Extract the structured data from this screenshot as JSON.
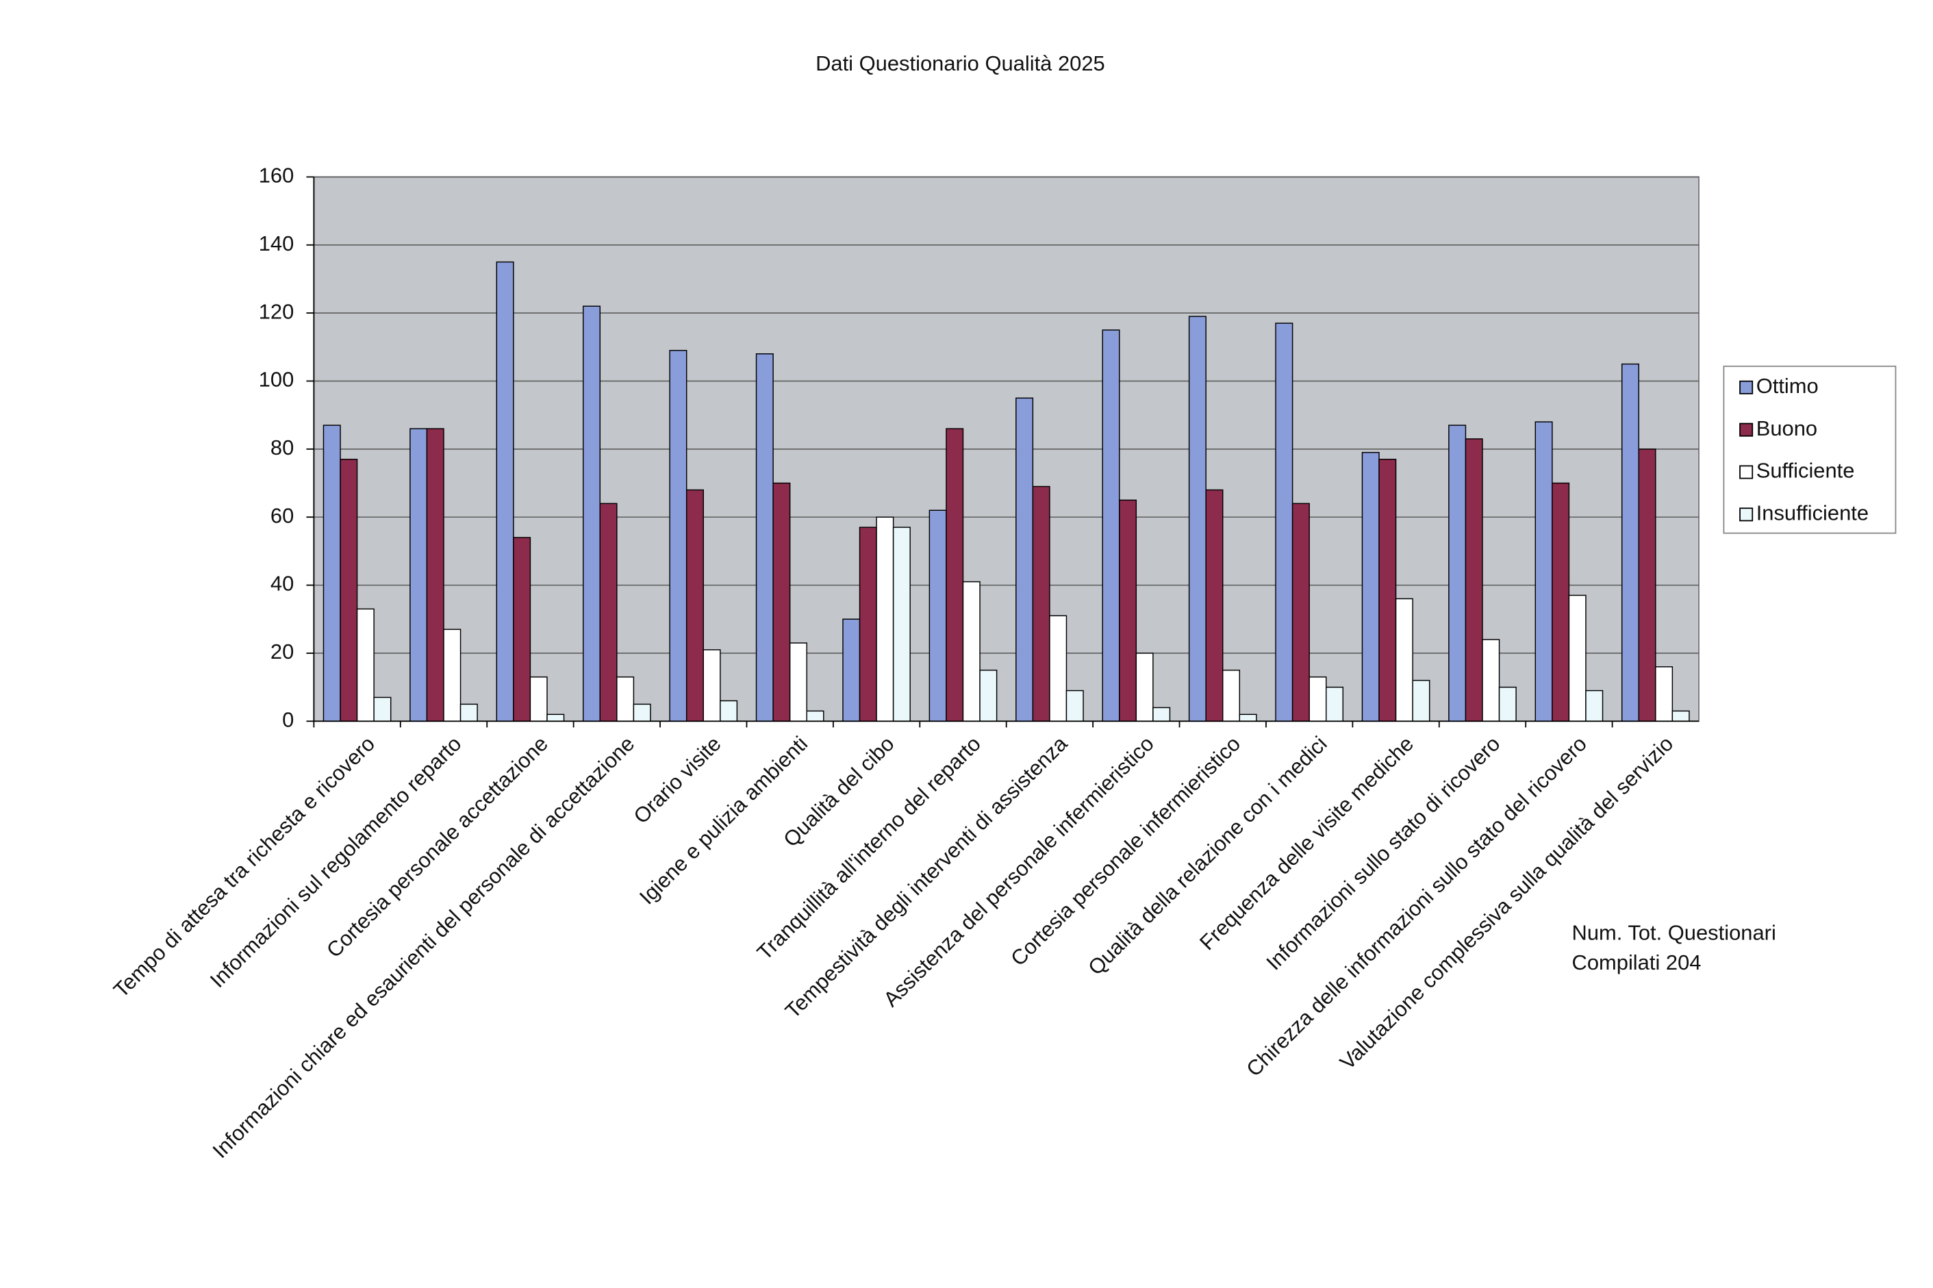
{
  "chart_data": {
    "type": "bar",
    "title": "Dati Questionario Qualità 2025",
    "categories": [
      "Tempo di attesa tra richesta e ricovero",
      "Informazioni sul regolamento reparto",
      "Cortesia personale accettazione",
      "Informazioni chiare ed esaurienti del personale di accettazione",
      "Orario visite",
      "Igiene e pulizia ambienti",
      "Qualità del cibo",
      "Tranquillità all'interno del reparto",
      "Tempestività degli interventi di assistenza",
      "Assistenza del personale infermieristico",
      "Cortesia personale infermieristico",
      "Qualità della relazione con i medici",
      "Frequenza delle visite mediche",
      "Informazioni sullo stato di ricovero",
      "Chirezza delle informazioni sullo stato del ricovero",
      "Valutazione complessiva sulla qualità del servizio"
    ],
    "series": [
      {
        "name": "Ottimo",
        "color": "#8a9ddb",
        "values": [
          87,
          86,
          135,
          122,
          109,
          108,
          30,
          62,
          95,
          115,
          119,
          117,
          79,
          87,
          88,
          105
        ]
      },
      {
        "name": "Buono",
        "color": "#8c2b4c",
        "values": [
          77,
          86,
          54,
          64,
          68,
          70,
          57,
          86,
          69,
          65,
          68,
          64,
          77,
          83,
          70,
          80
        ]
      },
      {
        "name": "Sufficiente",
        "color": "#ffffff",
        "values": [
          33,
          27,
          13,
          13,
          21,
          23,
          60,
          41,
          31,
          20,
          15,
          13,
          36,
          24,
          37,
          16
        ]
      },
      {
        "name": "Insufficiente",
        "color": "#eaf8fc",
        "values": [
          7,
          5,
          2,
          5,
          6,
          3,
          57,
          15,
          9,
          4,
          2,
          10,
          12,
          10,
          9,
          3
        ]
      }
    ],
    "ylim": [
      0,
      160
    ],
    "yticks": [
      0,
      20,
      40,
      60,
      80,
      100,
      120,
      140,
      160
    ],
    "grid": true,
    "legend": "right",
    "note": [
      "Num. Tot. Questionari",
      "Compilati 204"
    ]
  }
}
